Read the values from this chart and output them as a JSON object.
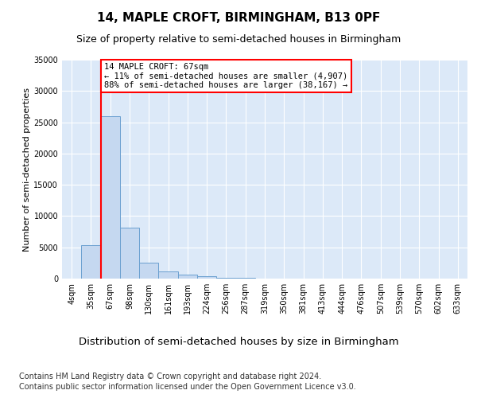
{
  "title": "14, MAPLE CROFT, BIRMINGHAM, B13 0PF",
  "subtitle": "Size of property relative to semi-detached houses in Birmingham",
  "xlabel": "Distribution of semi-detached houses by size in Birmingham",
  "ylabel": "Number of semi-detached properties",
  "bin_labels": [
    "4sqm",
    "35sqm",
    "67sqm",
    "98sqm",
    "130sqm",
    "161sqm",
    "193sqm",
    "224sqm",
    "256sqm",
    "287sqm",
    "319sqm",
    "350sqm",
    "381sqm",
    "413sqm",
    "444sqm",
    "476sqm",
    "507sqm",
    "539sqm",
    "570sqm",
    "602sqm",
    "633sqm"
  ],
  "bar_values": [
    0,
    5300,
    26000,
    8100,
    2500,
    1100,
    700,
    400,
    150,
    100,
    60,
    40,
    20,
    15,
    10,
    8,
    5,
    4,
    3,
    2,
    0
  ],
  "bar_color": "#c5d8f0",
  "bar_edge_color": "#6aa0d0",
  "red_line_x": 1.5,
  "annotation_text": "14 MAPLE CROFT: 67sqm\n← 11% of semi-detached houses are smaller (4,907)\n88% of semi-detached houses are larger (38,167) →",
  "annotation_box_color": "white",
  "annotation_box_edge_color": "red",
  "red_line_color": "red",
  "ylim": [
    0,
    35000
  ],
  "yticks": [
    0,
    5000,
    10000,
    15000,
    20000,
    25000,
    30000,
    35000
  ],
  "axes_bg_color": "#dce9f8",
  "footer_line1": "Contains HM Land Registry data © Crown copyright and database right 2024.",
  "footer_line2": "Contains public sector information licensed under the Open Government Licence v3.0.",
  "title_fontsize": 11,
  "subtitle_fontsize": 9,
  "xlabel_fontsize": 9.5,
  "ylabel_fontsize": 8,
  "tick_fontsize": 7,
  "footer_fontsize": 7,
  "annotation_fontsize": 7.5
}
